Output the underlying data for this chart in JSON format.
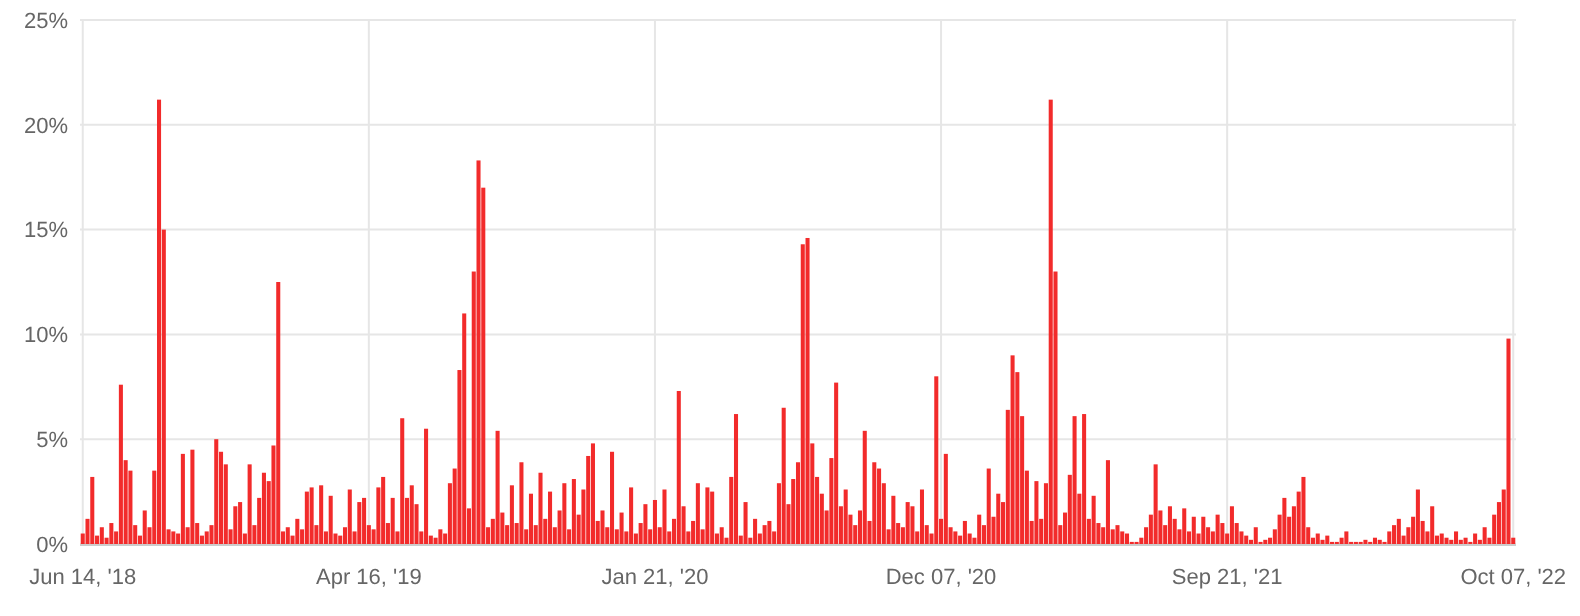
{
  "chart_data": {
    "type": "bar",
    "color": "#f22b2b",
    "categories": [
      "Jun 14, '18",
      null,
      null,
      null,
      null,
      null,
      null,
      null,
      null,
      null,
      null,
      null,
      null,
      null,
      null,
      null,
      null,
      null,
      null,
      null,
      null,
      null,
      null,
      null,
      null,
      null,
      null,
      null,
      null,
      null,
      null,
      null,
      null,
      null,
      null,
      null,
      null,
      null,
      null,
      null,
      null,
      null,
      null,
      null,
      null,
      null,
      null,
      null,
      null,
      null,
      null,
      null,
      null,
      null,
      null,
      null,
      null,
      null,
      null,
      null,
      "Apr 16, '19",
      null,
      null,
      null,
      null,
      null,
      null,
      null,
      null,
      null,
      null,
      null,
      null,
      null,
      null,
      null,
      null,
      null,
      null,
      null,
      null,
      null,
      null,
      null,
      null,
      null,
      null,
      null,
      null,
      null,
      null,
      null,
      null,
      null,
      null,
      null,
      null,
      null,
      null,
      null,
      null,
      null,
      null,
      null,
      null,
      null,
      null,
      null,
      null,
      null,
      null,
      null,
      null,
      null,
      null,
      null,
      null,
      null,
      null,
      null,
      "Jan 21, '20",
      null,
      null,
      null,
      null,
      null,
      null,
      null,
      null,
      null,
      null,
      null,
      null,
      null,
      null,
      null,
      null,
      null,
      null,
      null,
      null,
      null,
      null,
      null,
      null,
      null,
      null,
      null,
      null,
      null,
      null,
      null,
      null,
      null,
      null,
      null,
      null,
      null,
      null,
      null,
      null,
      null,
      null,
      null,
      null,
      null,
      null,
      null,
      null,
      null,
      null,
      null,
      null,
      null,
      null,
      null,
      null,
      null,
      null,
      null,
      "Dec 07, '20",
      null,
      null,
      null,
      null,
      null,
      null,
      null,
      null,
      null,
      null,
      null,
      null,
      null,
      null,
      null,
      null,
      null,
      null,
      null,
      null,
      null,
      null,
      null,
      null,
      null,
      null,
      null,
      null,
      null,
      null,
      null,
      null,
      null,
      null,
      null,
      null,
      null,
      null,
      null,
      null,
      null,
      null,
      null,
      null,
      null,
      null,
      null,
      null,
      null,
      null,
      null,
      null,
      null,
      null,
      null,
      null,
      null,
      null,
      null,
      "Sep 21, '21",
      null,
      null,
      null,
      null,
      null,
      null,
      null,
      null,
      null,
      null,
      null,
      null,
      null,
      null,
      null,
      null,
      null,
      null,
      null,
      null,
      null,
      null,
      null,
      null,
      null,
      null,
      null,
      null,
      null,
      null,
      null,
      null,
      null,
      null,
      null,
      null,
      null,
      null,
      null,
      null,
      null,
      null,
      null,
      null,
      null,
      null,
      null,
      null,
      null,
      null,
      null,
      null,
      null,
      null,
      null,
      null,
      null,
      null,
      null,
      "Oct 07, '22"
    ],
    "values": [
      0.5,
      1.2,
      3.2,
      0.4,
      0.8,
      0.3,
      1.0,
      0.6,
      7.6,
      4.0,
      3.5,
      0.9,
      0.4,
      1.6,
      0.8,
      3.5,
      21.2,
      15.0,
      0.7,
      0.6,
      0.5,
      4.3,
      0.8,
      4.5,
      1.0,
      0.4,
      0.6,
      0.9,
      5.0,
      4.4,
      3.8,
      0.7,
      1.8,
      2.0,
      0.5,
      3.8,
      0.9,
      2.2,
      3.4,
      3.0,
      4.7,
      12.5,
      0.6,
      0.8,
      0.4,
      1.2,
      0.7,
      2.5,
      2.7,
      0.9,
      2.8,
      0.6,
      2.3,
      0.5,
      0.4,
      0.8,
      2.6,
      0.6,
      2.0,
      2.2,
      0.9,
      0.7,
      2.7,
      3.2,
      1.0,
      2.2,
      0.6,
      6.0,
      2.2,
      2.8,
      1.9,
      0.6,
      5.5,
      0.4,
      0.3,
      0.7,
      0.5,
      2.9,
      3.6,
      8.3,
      11.0,
      1.7,
      13.0,
      18.3,
      17.0,
      0.8,
      1.2,
      5.4,
      1.5,
      0.9,
      2.8,
      1.0,
      3.9,
      0.7,
      2.4,
      0.9,
      3.4,
      1.2,
      2.5,
      0.8,
      1.6,
      2.9,
      0.7,
      3.1,
      1.4,
      2.6,
      4.2,
      4.8,
      1.1,
      1.6,
      0.8,
      4.4,
      0.7,
      1.5,
      0.6,
      2.7,
      0.5,
      1.0,
      1.9,
      0.7,
      2.1,
      0.8,
      2.6,
      0.6,
      1.2,
      7.3,
      1.8,
      0.6,
      1.1,
      2.9,
      0.7,
      2.7,
      2.5,
      0.5,
      0.8,
      0.3,
      3.2,
      6.2,
      0.4,
      2.0,
      0.3,
      1.2,
      0.5,
      0.9,
      1.1,
      0.6,
      2.9,
      6.5,
      1.9,
      3.1,
      3.9,
      14.3,
      14.6,
      4.8,
      3.2,
      2.4,
      1.6,
      4.1,
      7.7,
      1.8,
      2.6,
      1.4,
      0.9,
      1.6,
      5.4,
      1.1,
      3.9,
      3.6,
      2.9,
      0.7,
      2.3,
      1.0,
      0.8,
      2.0,
      1.8,
      0.6,
      2.6,
      0.9,
      0.5,
      8.0,
      1.2,
      4.3,
      0.8,
      0.6,
      0.4,
      1.1,
      0.5,
      0.3,
      1.4,
      0.9,
      3.6,
      1.3,
      2.4,
      2.0,
      6.4,
      9.0,
      8.2,
      6.1,
      3.5,
      1.1,
      3.0,
      1.2,
      2.9,
      21.2,
      13.0,
      0.9,
      1.5,
      3.3,
      6.1,
      2.4,
      6.2,
      1.2,
      2.3,
      1.0,
      0.8,
      4.0,
      0.7,
      0.9,
      0.6,
      0.5,
      0.1,
      0.1,
      0.3,
      0.8,
      1.4,
      3.8,
      1.6,
      0.9,
      1.8,
      1.2,
      0.7,
      1.7,
      0.6,
      1.3,
      0.5,
      1.3,
      0.8,
      0.6,
      1.4,
      1.0,
      0.5,
      1.8,
      1.0,
      0.6,
      0.4,
      0.2,
      0.8,
      0.1,
      0.2,
      0.3,
      0.7,
      1.4,
      2.2,
      1.3,
      1.8,
      2.5,
      3.2,
      0.8,
      0.3,
      0.5,
      0.2,
      0.4,
      0.1,
      0.1,
      0.3,
      0.6,
      0.1,
      0.1,
      0.1,
      0.2,
      0.1,
      0.3,
      0.2,
      0.1,
      0.6,
      0.9,
      1.2,
      0.4,
      0.8,
      1.3,
      2.6,
      1.1,
      0.6,
      1.8,
      0.4,
      0.5,
      0.3,
      0.2,
      0.6,
      0.2,
      0.3,
      0.1,
      0.5,
      0.2,
      0.8,
      0.3,
      1.4,
      2.0,
      2.6,
      9.8,
      0.3
    ],
    "ylim": [
      0,
      25
    ],
    "yticks": [
      {
        "value": 0,
        "label": "0%"
      },
      {
        "value": 5,
        "label": "5%"
      },
      {
        "value": 10,
        "label": "10%"
      },
      {
        "value": 15,
        "label": "15%"
      },
      {
        "value": 20,
        "label": "20%"
      },
      {
        "value": 25,
        "label": "25%"
      }
    ],
    "grid": true
  }
}
